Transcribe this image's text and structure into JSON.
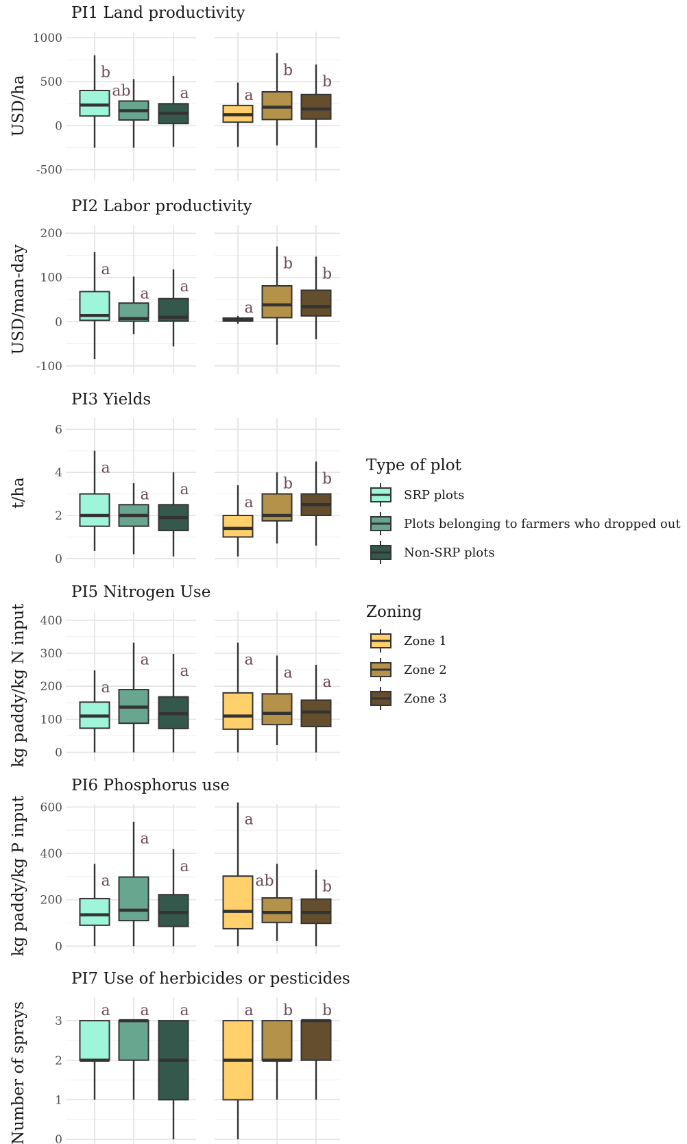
{
  "colors": {
    "SRP plots": "#9ff5d9",
    "Plots belonging to farmers who dropped out": "#68a690",
    "Non-SRP plots": "#34594c",
    "Zone 1": "#ffd06b",
    "Zone 2": "#b5924a",
    "Zone 3": "#654e2d"
  },
  "legends": [
    {
      "title": "Type of plot",
      "items": [
        "SRP plots",
        "Plots belonging to farmers who dropped out",
        "Non-SRP plots"
      ]
    },
    {
      "title": "Zoning",
      "items": [
        "Zone 1",
        "Zone 2",
        "Zone 3"
      ]
    }
  ],
  "chart_data": [
    {
      "type": "box",
      "title": "PI1 Land productivity",
      "ylabel": "USD/ha",
      "ylim": [
        -550,
        1000
      ],
      "yticks": [
        -500,
        0,
        500,
        1000
      ],
      "grid": true,
      "panels": [
        {
          "facet": "Type of plot",
          "groups": [
            {
              "name": "SRP plots",
              "min": -250,
              "q1": 110,
              "median": 235,
              "q3": 400,
              "max": 800,
              "letter": "b"
            },
            {
              "name": "Plots belonging to farmers who dropped out",
              "min": -250,
              "q1": 65,
              "median": 170,
              "q3": 280,
              "max": 530,
              "letter": "ab"
            },
            {
              "name": "Non-SRP plots",
              "min": -240,
              "q1": 25,
              "median": 140,
              "q3": 250,
              "max": 565,
              "letter": "a"
            }
          ]
        },
        {
          "facet": "Zoning",
          "groups": [
            {
              "name": "Zone 1",
              "min": -240,
              "q1": 40,
              "median": 125,
              "q3": 230,
              "max": 490,
              "letter": "a"
            },
            {
              "name": "Zone 2",
              "min": -225,
              "q1": 70,
              "median": 210,
              "q3": 385,
              "max": 825,
              "letter": "b"
            },
            {
              "name": "Zone 3",
              "min": -250,
              "q1": 75,
              "median": 190,
              "q3": 355,
              "max": 695,
              "letter": "b"
            }
          ]
        }
      ]
    },
    {
      "type": "box",
      "title": "PI2 Labor productivity",
      "ylabel": "USD/man-day",
      "ylim": [
        -105,
        205
      ],
      "yticks": [
        -100,
        0,
        100,
        200
      ],
      "grid": true,
      "panels": [
        {
          "facet": "Type of plot",
          "groups": [
            {
              "name": "SRP plots",
              "min": -85,
              "q1": 3,
              "median": 14,
              "q3": 68,
              "max": 157,
              "letter": "a"
            },
            {
              "name": "Plots belonging to farmers who dropped out",
              "min": -28,
              "q1": 1,
              "median": 7,
              "q3": 42,
              "max": 102,
              "letter": "a"
            },
            {
              "name": "Non-SRP plots",
              "min": -56,
              "q1": 1,
              "median": 10,
              "q3": 52,
              "max": 118,
              "letter": "a"
            }
          ]
        },
        {
          "facet": "Zoning",
          "groups": [
            {
              "name": "Zone 1",
              "min": -5,
              "q1": 1,
              "median": 4,
              "q3": 8,
              "max": 13,
              "letter": "a"
            },
            {
              "name": "Zone 2",
              "min": -52,
              "q1": 9,
              "median": 38,
              "q3": 81,
              "max": 170,
              "letter": "b"
            },
            {
              "name": "Zone 3",
              "min": -40,
              "q1": 13,
              "median": 34,
              "q3": 71,
              "max": 147,
              "letter": "b"
            }
          ]
        }
      ]
    },
    {
      "type": "box",
      "title": "PI3 Yields",
      "ylabel": "t/ha",
      "ylim": [
        -0.1,
        6.2
      ],
      "yticks": [
        0,
        2,
        4,
        6
      ],
      "grid": true,
      "panels": [
        {
          "facet": "Type of plot",
          "groups": [
            {
              "name": "SRP plots",
              "min": 0.35,
              "q1": 1.5,
              "median": 2.0,
              "q3": 3.0,
              "max": 5.0,
              "letter": "a"
            },
            {
              "name": "Plots belonging to farmers who dropped out",
              "min": 0.2,
              "q1": 1.5,
              "median": 2.0,
              "q3": 2.5,
              "max": 3.5,
              "letter": "a"
            },
            {
              "name": "Non-SRP plots",
              "min": 0.1,
              "q1": 1.3,
              "median": 1.9,
              "q3": 2.5,
              "max": 4.0,
              "letter": "a"
            }
          ]
        },
        {
          "facet": "Zoning",
          "groups": [
            {
              "name": "Zone 1",
              "min": 0.1,
              "q1": 1.0,
              "median": 1.4,
              "q3": 2.0,
              "max": 3.4,
              "letter": "a"
            },
            {
              "name": "Zone 2",
              "min": 0.7,
              "q1": 1.75,
              "median": 2.0,
              "q3": 3.0,
              "max": 4.0,
              "letter": "b"
            },
            {
              "name": "Zone 3",
              "min": 0.6,
              "q1": 2.0,
              "median": 2.5,
              "q3": 3.0,
              "max": 4.5,
              "letter": "b"
            }
          ]
        }
      ]
    },
    {
      "type": "box",
      "title": "PI5 Nitrogen Use",
      "ylabel": "kg paddy/kg N input",
      "ylim": [
        -5,
        410
      ],
      "yticks": [
        0,
        100,
        200,
        300,
        400
      ],
      "grid": true,
      "panels": [
        {
          "facet": "Type of plot",
          "groups": [
            {
              "name": "SRP plots",
              "min": 0,
              "q1": 73,
              "median": 110,
              "q3": 152,
              "max": 248,
              "letter": "a"
            },
            {
              "name": "Plots belonging to farmers who dropped out",
              "min": 0,
              "q1": 88,
              "median": 137,
              "q3": 190,
              "max": 332,
              "letter": "a"
            },
            {
              "name": "Non-SRP plots",
              "min": 0,
              "q1": 72,
              "median": 117,
              "q3": 168,
              "max": 298,
              "letter": "a"
            }
          ]
        },
        {
          "facet": "Zoning",
          "groups": [
            {
              "name": "Zone 1",
              "min": 0,
              "q1": 70,
              "median": 110,
              "q3": 180,
              "max": 332,
              "letter": "a"
            },
            {
              "name": "Zone 2",
              "min": 22,
              "q1": 84,
              "median": 118,
              "q3": 177,
              "max": 293,
              "letter": "a"
            },
            {
              "name": "Zone 3",
              "min": 0,
              "q1": 78,
              "median": 122,
              "q3": 158,
              "max": 265,
              "letter": "a"
            }
          ]
        }
      ]
    },
    {
      "type": "box",
      "title": "PI6 Phosphorus use",
      "ylabel": "kg paddy/kg P input",
      "ylim": [
        -5,
        610
      ],
      "yticks": [
        0,
        200,
        400,
        600
      ],
      "grid": true,
      "panels": [
        {
          "facet": "Type of plot",
          "groups": [
            {
              "name": "SRP plots",
              "min": 0,
              "q1": 90,
              "median": 135,
              "q3": 205,
              "max": 355,
              "letter": "a"
            },
            {
              "name": "Plots belonging to farmers who dropped out",
              "min": 0,
              "q1": 110,
              "median": 155,
              "q3": 298,
              "max": 537,
              "letter": "a"
            },
            {
              "name": "Non-SRP plots",
              "min": 0,
              "q1": 85,
              "median": 145,
              "q3": 222,
              "max": 418,
              "letter": "a"
            }
          ]
        },
        {
          "facet": "Zoning",
          "groups": [
            {
              "name": "Zone 1",
              "min": 0,
              "q1": 75,
              "median": 150,
              "q3": 302,
              "max": 620,
              "letter": "a"
            },
            {
              "name": "Zone 2",
              "min": 22,
              "q1": 102,
              "median": 145,
              "q3": 208,
              "max": 355,
              "letter": "ab"
            },
            {
              "name": "Zone 3",
              "min": 0,
              "q1": 98,
              "median": 145,
              "q3": 203,
              "max": 330,
              "letter": "b"
            }
          ]
        }
      ]
    },
    {
      "type": "box",
      "title": "PI7 Use of herbicides or pesticides",
      "ylabel": "Number of sprays",
      "ylim": [
        -0.05,
        3.4
      ],
      "yticks": [
        0,
        1,
        2,
        3
      ],
      "grid": true,
      "panels": [
        {
          "facet": "Type of plot",
          "groups": [
            {
              "name": "SRP plots",
              "min": 1,
              "q1": 2,
              "median": 2,
              "q3": 3,
              "max": 3,
              "letter": "a"
            },
            {
              "name": "Plots belonging to farmers who dropped out",
              "min": 1,
              "q1": 2,
              "median": 3,
              "q3": 3,
              "max": 3,
              "letter": "a"
            },
            {
              "name": "Non-SRP plots",
              "min": 0,
              "q1": 1,
              "median": 2,
              "q3": 3,
              "max": 3,
              "letter": "a"
            }
          ]
        },
        {
          "facet": "Zoning",
          "groups": [
            {
              "name": "Zone 1",
              "min": 0,
              "q1": 1,
              "median": 2,
              "q3": 3,
              "max": 3,
              "letter": "a"
            },
            {
              "name": "Zone 2",
              "min": 1,
              "q1": 2,
              "median": 2,
              "q3": 3,
              "max": 3,
              "letter": "b"
            },
            {
              "name": "Zone 3",
              "min": 1,
              "q1": 2,
              "median": 3,
              "q3": 3,
              "max": 3,
              "letter": "b"
            }
          ]
        }
      ]
    }
  ]
}
